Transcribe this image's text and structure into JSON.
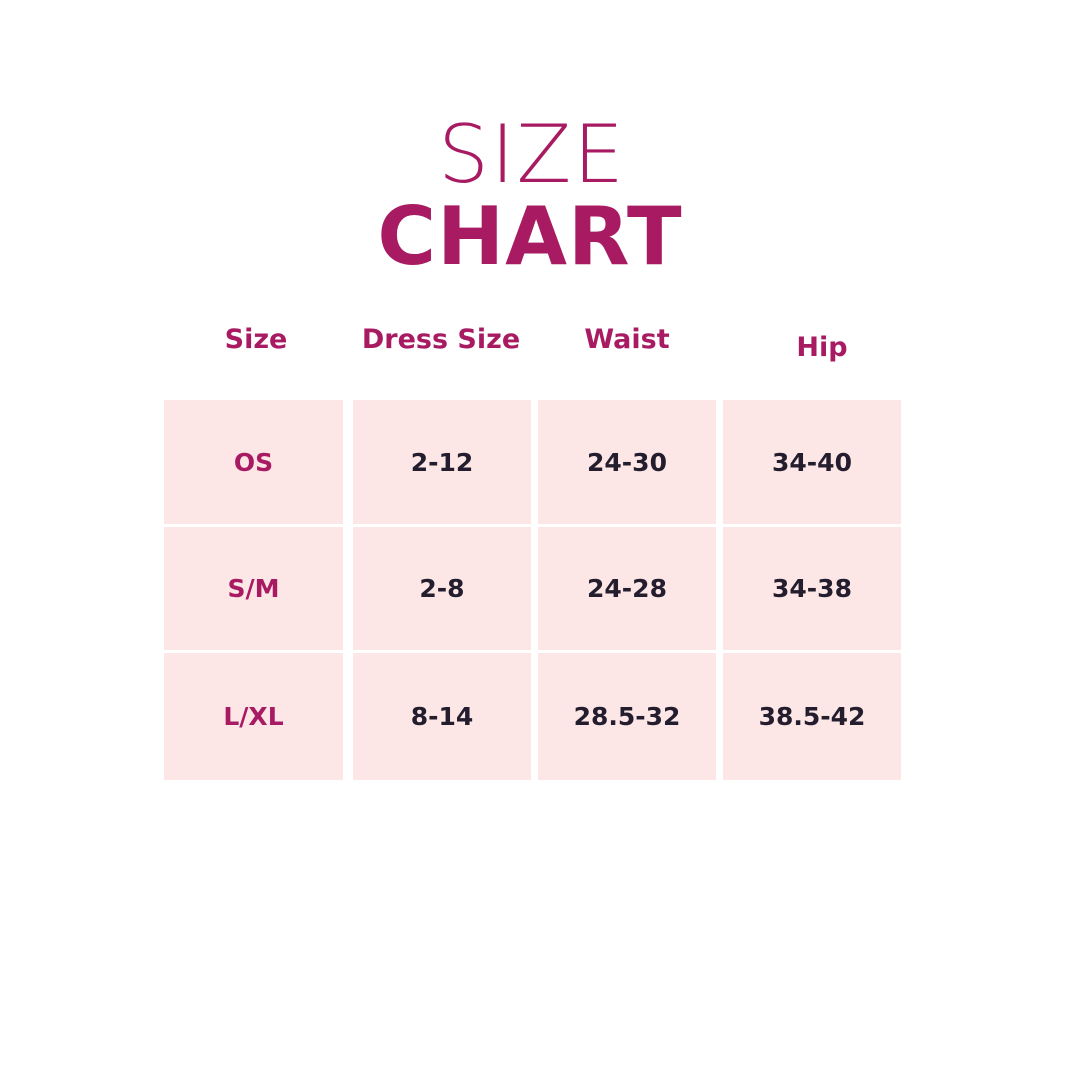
{
  "title": {
    "line1": "SIZE",
    "line2": "CHART"
  },
  "colors": {
    "accent": "#a81b62",
    "cell_bg": "#fce6e6",
    "text": "#231d2e"
  },
  "table": {
    "headers": [
      "Size",
      "Dress Size",
      "Waist",
      "Hip"
    ],
    "rows": [
      [
        "OS",
        "2-12",
        "24-30",
        "34-40"
      ],
      [
        "S/M",
        "2-8",
        "24-28",
        "34-38"
      ],
      [
        "L/XL",
        "8-14",
        "28.5-32",
        "38.5-42"
      ]
    ]
  }
}
